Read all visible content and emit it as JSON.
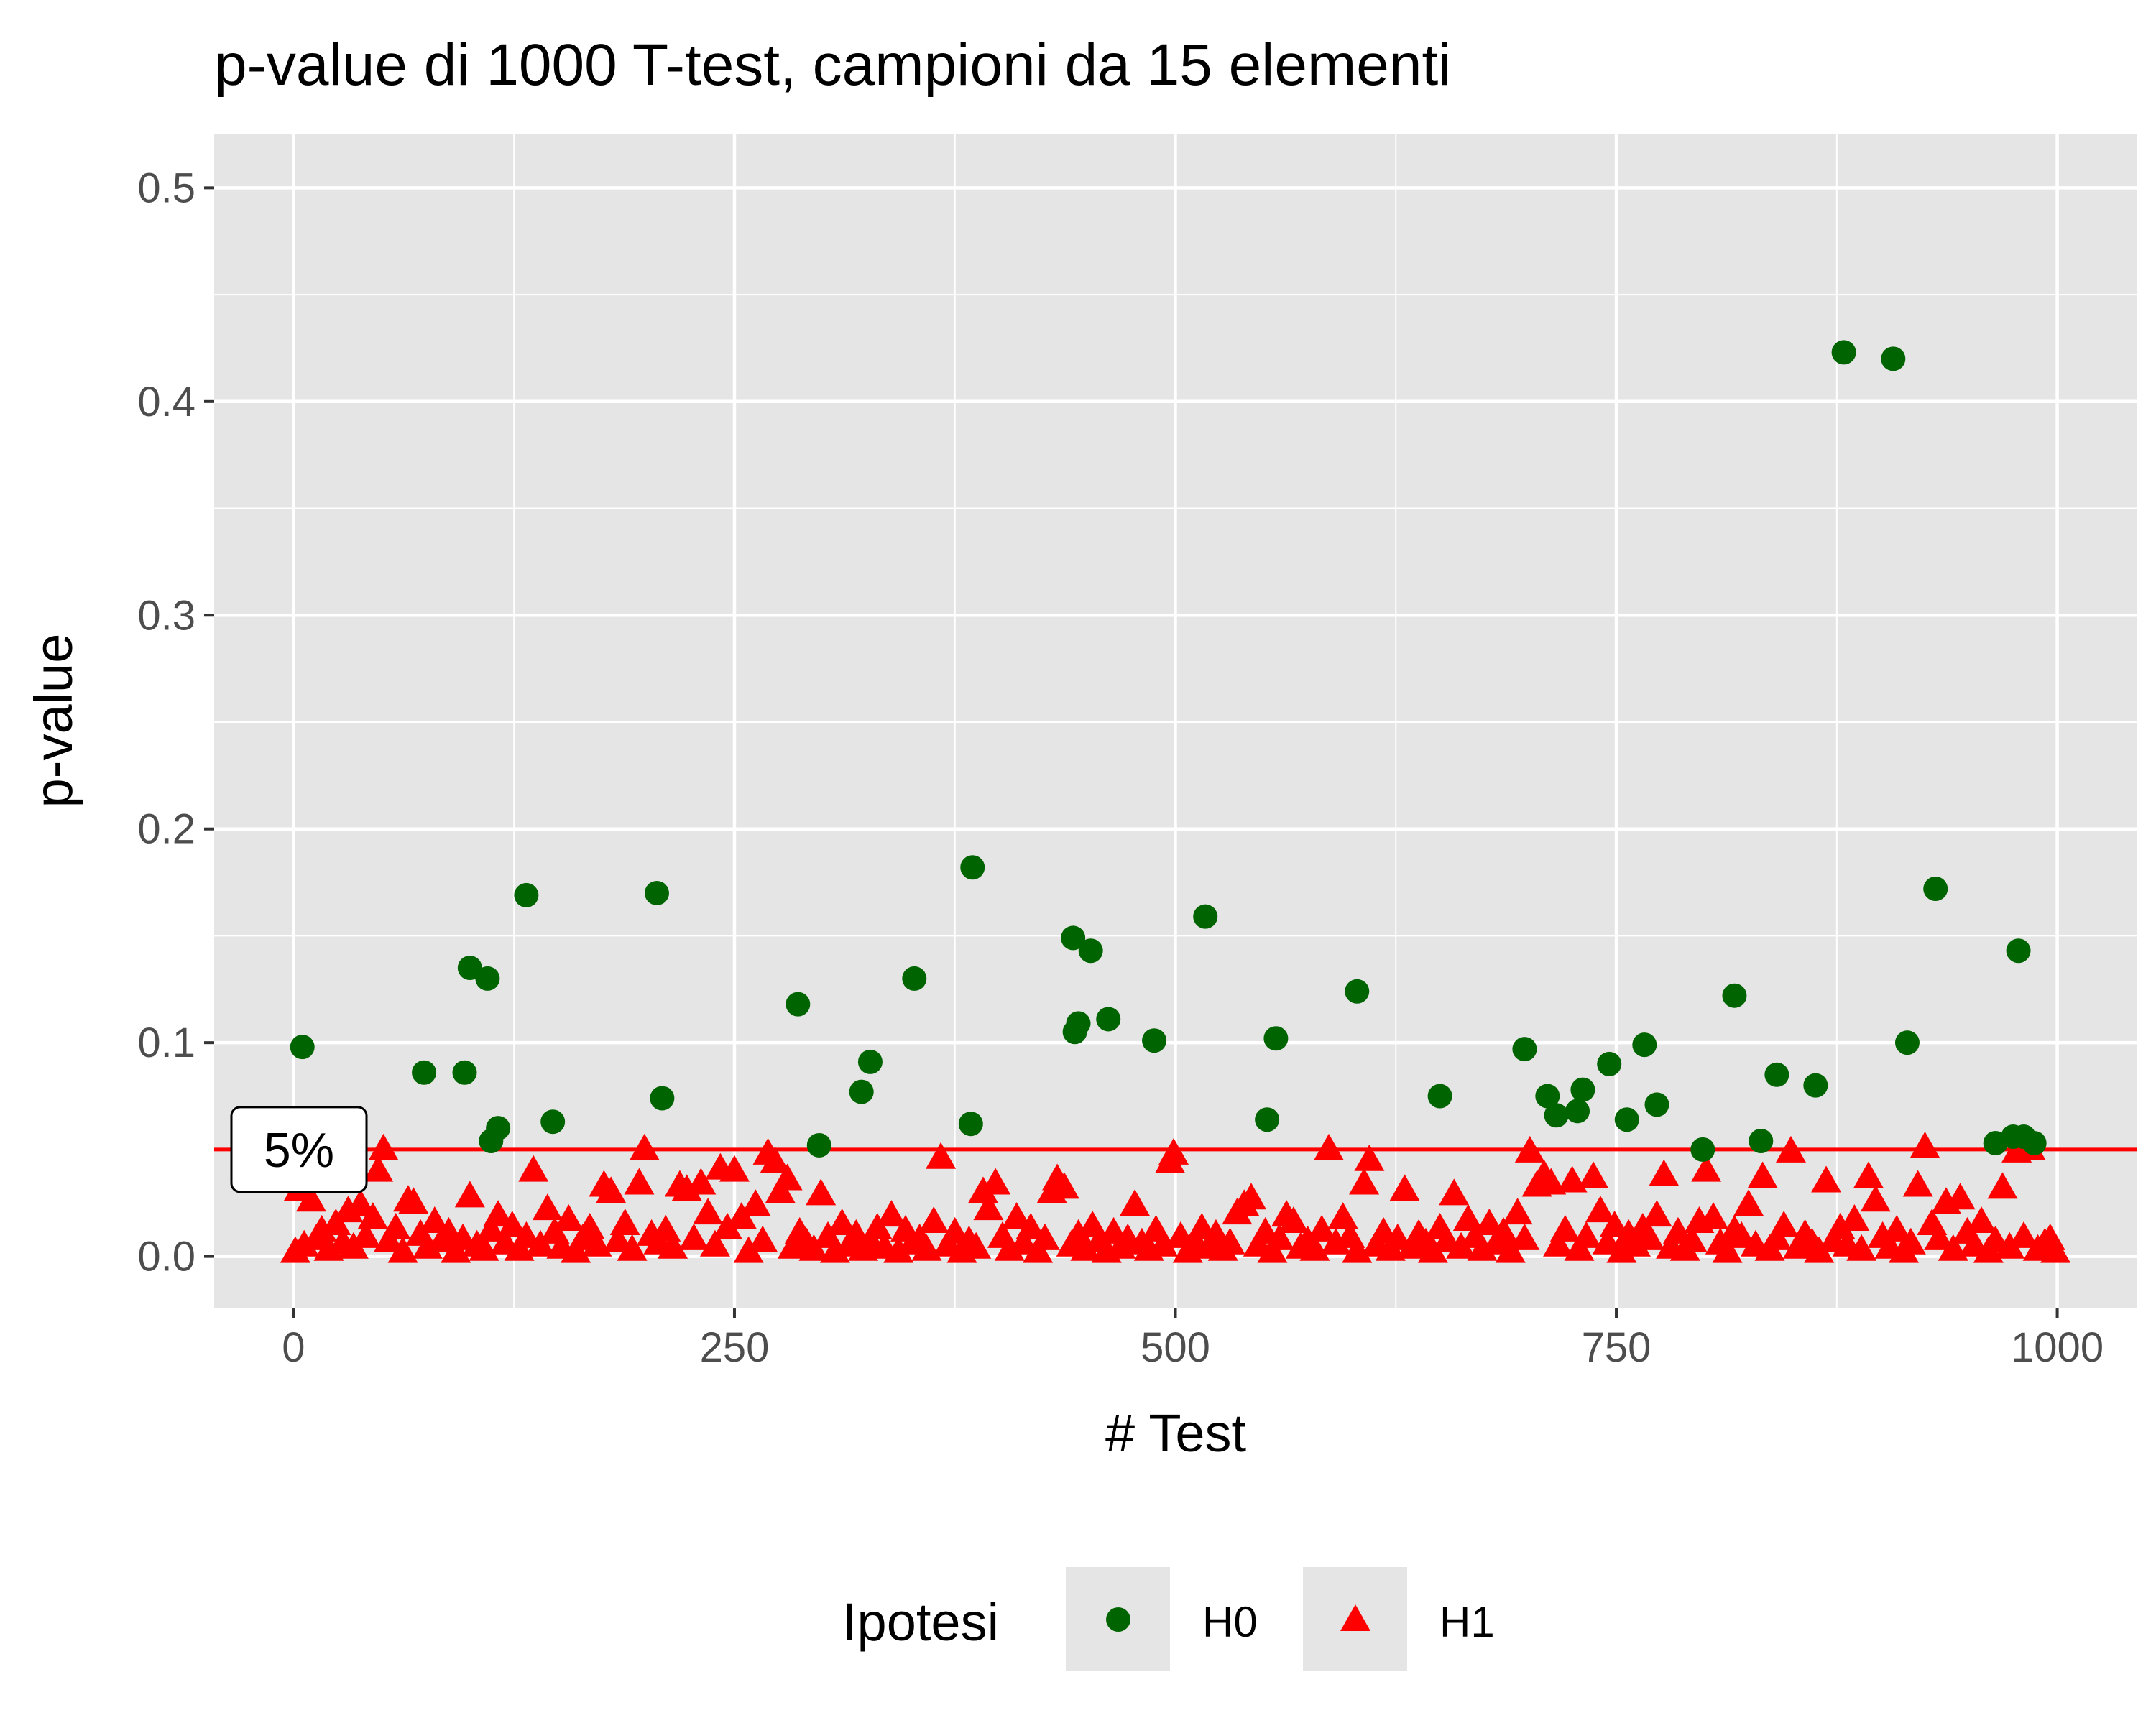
{
  "chart_data": {
    "type": "scatter",
    "title": "p-value di 1000 T-test, campioni da 15 elementi",
    "xlabel": "# Test",
    "ylabel": "p-value",
    "xlim": [
      -45,
      1045
    ],
    "ylim": [
      -0.024,
      0.525
    ],
    "x_ticks": [
      0,
      250,
      500,
      750,
      1000
    ],
    "x_tick_labels": [
      "0",
      "250",
      "500",
      "750",
      "1000"
    ],
    "y_ticks": [
      0.0,
      0.1,
      0.2,
      0.3,
      0.4,
      0.5
    ],
    "y_tick_labels": [
      "0.0",
      "0.1",
      "0.2",
      "0.3",
      "0.4",
      "0.5"
    ],
    "grid": true,
    "background": "#e5e5e5",
    "legend": {
      "title": "Ipotesi",
      "position": "bottom",
      "entries": [
        {
          "label": "H0",
          "shape": "circle",
          "color": "#006400"
        },
        {
          "label": "H1",
          "shape": "triangle",
          "color": "#ff0000"
        }
      ]
    },
    "threshold": {
      "y": 0.05,
      "color": "#ff0000",
      "label": "5%"
    },
    "series": [
      {
        "name": "H0",
        "shape": "circle",
        "color": "#006400",
        "points": [
          [
            5,
            0.098
          ],
          [
            74,
            0.086
          ],
          [
            97,
            0.086
          ],
          [
            100,
            0.135
          ],
          [
            110,
            0.13
          ],
          [
            112,
            0.054
          ],
          [
            116,
            0.06
          ],
          [
            132,
            0.169
          ],
          [
            147,
            0.063
          ],
          [
            206,
            0.17
          ],
          [
            209,
            0.074
          ],
          [
            286,
            0.118
          ],
          [
            298,
            0.052
          ],
          [
            322,
            0.077
          ],
          [
            327,
            0.091
          ],
          [
            352,
            0.13
          ],
          [
            384,
            0.062
          ],
          [
            385,
            0.182
          ],
          [
            442,
            0.149
          ],
          [
            443,
            0.105
          ],
          [
            445,
            0.109
          ],
          [
            452,
            0.143
          ],
          [
            462,
            0.111
          ],
          [
            488,
            0.101
          ],
          [
            517,
            0.159
          ],
          [
            552,
            0.064
          ],
          [
            557,
            0.102
          ],
          [
            603,
            0.124
          ],
          [
            650,
            0.075
          ],
          [
            698,
            0.097
          ],
          [
            711,
            0.075
          ],
          [
            716,
            0.066
          ],
          [
            728,
            0.068
          ],
          [
            731,
            0.078
          ],
          [
            746,
            0.09
          ],
          [
            756,
            0.064
          ],
          [
            766,
            0.099
          ],
          [
            773,
            0.071
          ],
          [
            799,
            0.05
          ],
          [
            817,
            0.122
          ],
          [
            832,
            0.054
          ],
          [
            841,
            0.085
          ],
          [
            863,
            0.08
          ],
          [
            879,
            0.423
          ],
          [
            907,
            0.42
          ],
          [
            915,
            0.1
          ],
          [
            931,
            0.172
          ],
          [
            965,
            0.053
          ],
          [
            975,
            0.056
          ],
          [
            978,
            0.143
          ],
          [
            981,
            0.056
          ],
          [
            987,
            0.053
          ]
        ]
      },
      {
        "name": "H1",
        "shape": "triangle",
        "color": "#ff0000",
        "points": [
          [
            1,
            0.002
          ],
          [
            3,
            0.031
          ],
          [
            6,
            0.005
          ],
          [
            10,
            0.026
          ],
          [
            13,
            0.008
          ],
          [
            16,
            0.012
          ],
          [
            20,
            0.003
          ],
          [
            24,
            0.015
          ],
          [
            28,
            0.006
          ],
          [
            31,
            0.021
          ],
          [
            34,
            0.004
          ],
          [
            38,
            0.024
          ],
          [
            41,
            0.009
          ],
          [
            45,
            0.018
          ],
          [
            48,
            0.04
          ],
          [
            51,
            0.05
          ],
          [
            54,
            0.007
          ],
          [
            58,
            0.013
          ],
          [
            62,
            0.002
          ],
          [
            65,
            0.026
          ],
          [
            68,
            0.025
          ],
          [
            72,
            0.01
          ],
          [
            76,
            0.004
          ],
          [
            80,
            0.016
          ],
          [
            84,
            0.007
          ],
          [
            88,
            0.011
          ],
          [
            92,
            0.002
          ],
          [
            96,
            0.008
          ],
          [
            100,
            0.028
          ],
          [
            104,
            0.005
          ],
          [
            108,
            0.003
          ],
          [
            112,
            0.012
          ],
          [
            116,
            0.019
          ],
          [
            120,
            0.006
          ],
          [
            124,
            0.014
          ],
          [
            128,
            0.003
          ],
          [
            132,
            0.009
          ],
          [
            136,
            0.04
          ],
          [
            140,
            0.005
          ],
          [
            144,
            0.022
          ],
          [
            148,
            0.011
          ],
          [
            152,
            0.004
          ],
          [
            156,
            0.017
          ],
          [
            160,
            0.002
          ],
          [
            164,
            0.008
          ],
          [
            168,
            0.013
          ],
          [
            172,
            0.005
          ],
          [
            176,
            0.033
          ],
          [
            180,
            0.03
          ],
          [
            184,
            0.007
          ],
          [
            188,
            0.015
          ],
          [
            192,
            0.003
          ],
          [
            196,
            0.034
          ],
          [
            199,
            0.05
          ],
          [
            203,
            0.01
          ],
          [
            207,
            0.006
          ],
          [
            211,
            0.012
          ],
          [
            215,
            0.004
          ],
          [
            219,
            0.033
          ],
          [
            223,
            0.031
          ],
          [
            227,
            0.008
          ],
          [
            231,
            0.034
          ],
          [
            235,
            0.02
          ],
          [
            239,
            0.005
          ],
          [
            242,
            0.041
          ],
          [
            246,
            0.013
          ],
          [
            250,
            0.04
          ],
          [
            254,
            0.018
          ],
          [
            258,
            0.002
          ],
          [
            262,
            0.024
          ],
          [
            266,
            0.007
          ],
          [
            269,
            0.048
          ],
          [
            273,
            0.044
          ],
          [
            276,
            0.03
          ],
          [
            280,
            0.036
          ],
          [
            283,
            0.004
          ],
          [
            287,
            0.011
          ],
          [
            291,
            0.006
          ],
          [
            295,
            0.003
          ],
          [
            299,
            0.029
          ],
          [
            303,
            0.009
          ],
          [
            307,
            0.002
          ],
          [
            311,
            0.015
          ],
          [
            315,
            0.005
          ],
          [
            319,
            0.01
          ],
          [
            323,
            0.003
          ],
          [
            327,
            0.007
          ],
          [
            331,
            0.013
          ],
          [
            335,
            0.004
          ],
          [
            339,
            0.019
          ],
          [
            343,
            0.002
          ],
          [
            347,
            0.012
          ],
          [
            351,
            0.006
          ],
          [
            355,
            0.008
          ],
          [
            359,
            0.003
          ],
          [
            363,
            0.016
          ],
          [
            367,
            0.046
          ],
          [
            371,
            0.005
          ],
          [
            375,
            0.011
          ],
          [
            379,
            0.002
          ],
          [
            383,
            0.007
          ],
          [
            387,
            0.004
          ],
          [
            391,
            0.03
          ],
          [
            394,
            0.022
          ],
          [
            398,
            0.034
          ],
          [
            402,
            0.009
          ],
          [
            406,
            0.003
          ],
          [
            410,
            0.018
          ],
          [
            414,
            0.006
          ],
          [
            418,
            0.013
          ],
          [
            422,
            0.002
          ],
          [
            426,
            0.008
          ],
          [
            430,
            0.03
          ],
          [
            433,
            0.036
          ],
          [
            437,
            0.032
          ],
          [
            441,
            0.005
          ],
          [
            445,
            0.01
          ],
          [
            449,
            0.003
          ],
          [
            453,
            0.014
          ],
          [
            457,
            0.007
          ],
          [
            461,
            0.002
          ],
          [
            465,
            0.011
          ],
          [
            469,
            0.004
          ],
          [
            473,
            0.008
          ],
          [
            477,
            0.024
          ],
          [
            481,
            0.006
          ],
          [
            485,
            0.003
          ],
          [
            489,
            0.012
          ],
          [
            493,
            0.005
          ],
          [
            497,
            0.044
          ],
          [
            499,
            0.048
          ],
          [
            503,
            0.009
          ],
          [
            507,
            0.002
          ],
          [
            511,
            0.007
          ],
          [
            515,
            0.013
          ],
          [
            519,
            0.004
          ],
          [
            523,
            0.01
          ],
          [
            527,
            0.003
          ],
          [
            531,
            0.006
          ],
          [
            535,
            0.02
          ],
          [
            539,
            0.024
          ],
          [
            543,
            0.027
          ],
          [
            547,
            0.005
          ],
          [
            551,
            0.011
          ],
          [
            555,
            0.002
          ],
          [
            559,
            0.008
          ],
          [
            563,
            0.019
          ],
          [
            567,
            0.016
          ],
          [
            571,
            0.004
          ],
          [
            575,
            0.007
          ],
          [
            579,
            0.003
          ],
          [
            583,
            0.012
          ],
          [
            587,
            0.05
          ],
          [
            591,
            0.006
          ],
          [
            595,
            0.018
          ],
          [
            599,
            0.009
          ],
          [
            603,
            0.002
          ],
          [
            607,
            0.034
          ],
          [
            610,
            0.045
          ],
          [
            614,
            0.005
          ],
          [
            618,
            0.011
          ],
          [
            622,
            0.003
          ],
          [
            626,
            0.008
          ],
          [
            630,
            0.031
          ],
          [
            634,
            0.004
          ],
          [
            638,
            0.01
          ],
          [
            642,
            0.006
          ],
          [
            646,
            0.002
          ],
          [
            650,
            0.013
          ],
          [
            654,
            0.007
          ],
          [
            658,
            0.029
          ],
          [
            662,
            0.004
          ],
          [
            666,
            0.017
          ],
          [
            670,
            0.009
          ],
          [
            674,
            0.003
          ],
          [
            678,
            0.015
          ],
          [
            682,
            0.006
          ],
          [
            686,
            0.011
          ],
          [
            690,
            0.002
          ],
          [
            694,
            0.02
          ],
          [
            698,
            0.008
          ],
          [
            701,
            0.049
          ],
          [
            705,
            0.033
          ],
          [
            709,
            0.038
          ],
          [
            713,
            0.034
          ],
          [
            717,
            0.005
          ],
          [
            721,
            0.012
          ],
          [
            725,
            0.035
          ],
          [
            729,
            0.003
          ],
          [
            733,
            0.009
          ],
          [
            737,
            0.037
          ],
          [
            741,
            0.021
          ],
          [
            745,
            0.006
          ],
          [
            749,
            0.014
          ],
          [
            753,
            0.002
          ],
          [
            757,
            0.01
          ],
          [
            761,
            0.005
          ],
          [
            765,
            0.013
          ],
          [
            769,
            0.008
          ],
          [
            773,
            0.019
          ],
          [
            777,
            0.038
          ],
          [
            781,
            0.004
          ],
          [
            785,
            0.011
          ],
          [
            789,
            0.003
          ],
          [
            793,
            0.007
          ],
          [
            797,
            0.016
          ],
          [
            801,
            0.04
          ],
          [
            805,
            0.018
          ],
          [
            809,
            0.006
          ],
          [
            813,
            0.002
          ],
          [
            817,
            0.012
          ],
          [
            821,
            0.009
          ],
          [
            825,
            0.024
          ],
          [
            829,
            0.005
          ],
          [
            833,
            0.037
          ],
          [
            837,
            0.003
          ],
          [
            841,
            0.008
          ],
          [
            845,
            0.014
          ],
          [
            849,
            0.049
          ],
          [
            853,
            0.004
          ],
          [
            857,
            0.01
          ],
          [
            861,
            0.006
          ],
          [
            865,
            0.002
          ],
          [
            869,
            0.035
          ],
          [
            873,
            0.007
          ],
          [
            877,
            0.013
          ],
          [
            881,
            0.005
          ],
          [
            885,
            0.017
          ],
          [
            889,
            0.003
          ],
          [
            893,
            0.037
          ],
          [
            897,
            0.026
          ],
          [
            901,
            0.009
          ],
          [
            905,
            0.004
          ],
          [
            909,
            0.012
          ],
          [
            913,
            0.002
          ],
          [
            917,
            0.006
          ],
          [
            921,
            0.033
          ],
          [
            925,
            0.051
          ],
          [
            929,
            0.015
          ],
          [
            933,
            0.008
          ],
          [
            937,
            0.025
          ],
          [
            941,
            0.003
          ],
          [
            945,
            0.027
          ],
          [
            949,
            0.011
          ],
          [
            953,
            0.005
          ],
          [
            957,
            0.016
          ],
          [
            961,
            0.002
          ],
          [
            965,
            0.007
          ],
          [
            969,
            0.032
          ],
          [
            973,
            0.004
          ],
          [
            977,
            0.049
          ],
          [
            981,
            0.009
          ],
          [
            985,
            0.05
          ],
          [
            989,
            0.003
          ],
          [
            993,
            0.006
          ],
          [
            996,
            0.008
          ],
          [
            999,
            0.002
          ]
        ]
      }
    ]
  }
}
